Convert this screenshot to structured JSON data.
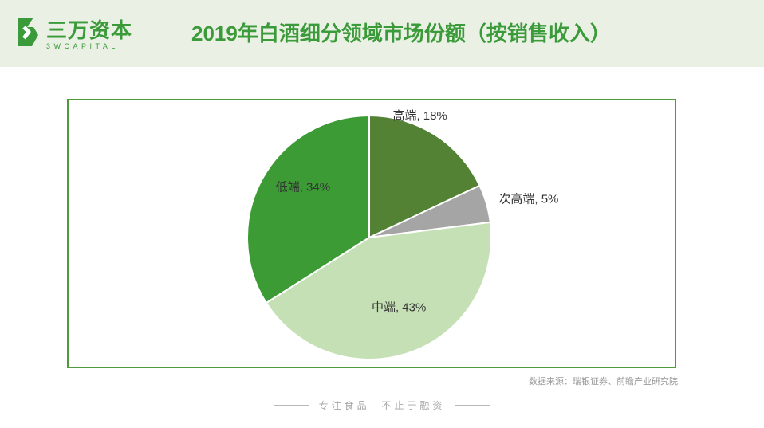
{
  "header": {
    "logo_text": "三万资本",
    "logo_sub": "3WCAPITAL",
    "brand_color": "#3b9a3a",
    "title": "2019年白酒细分领域市场份额（按销售收入）"
  },
  "chart_data": {
    "type": "pie",
    "title": "2019年白酒细分领域市场份额（按销售收入）",
    "unit": "%",
    "start_angle_deg": 0,
    "direction": "clockwise",
    "slices": [
      {
        "label": "高端",
        "value": 18,
        "display": "高端, 18%",
        "color": "#548235"
      },
      {
        "label": "次高端",
        "value": 5,
        "display": "次高端, 5%",
        "color": "#a5a5a5"
      },
      {
        "label": "中端",
        "value": 43,
        "display": "中端, 43%",
        "color": "#c5e0b4"
      },
      {
        "label": "低端",
        "value": 34,
        "display": "低端, 34%",
        "color": "#3c9b35"
      }
    ]
  },
  "source": "数据来源：瑞银证券、前瞻产业研究院",
  "footer": {
    "slogan": "专注食品  不止于融资"
  }
}
